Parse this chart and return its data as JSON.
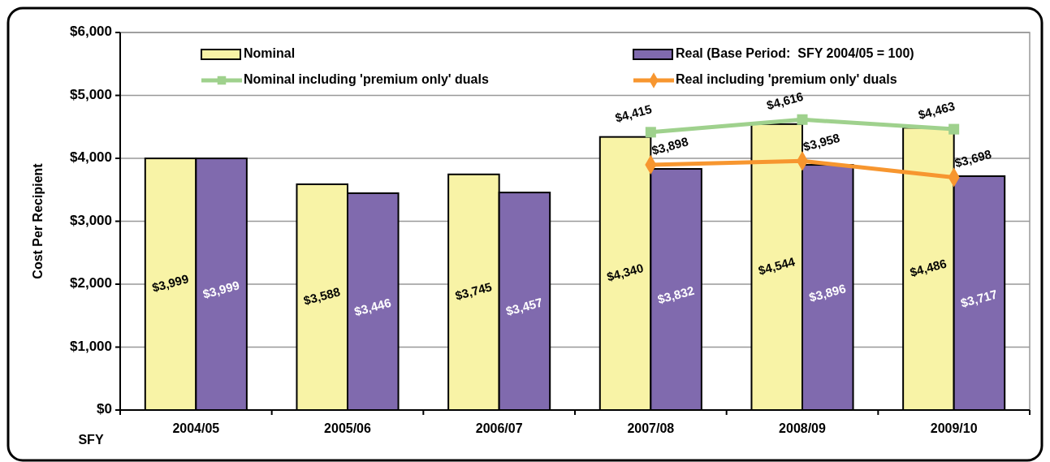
{
  "chart_data": {
    "type": "bar",
    "xlabel": "SFY",
    "ylabel": "Cost Per Recipient",
    "categories": [
      "2004/05",
      "2005/06",
      "2006/07",
      "2007/08",
      "2008/09",
      "2009/10"
    ],
    "ylim": [
      0,
      6000
    ],
    "yticks": [
      {
        "value": 0,
        "label": "$0"
      },
      {
        "value": 1000,
        "label": "$1,000"
      },
      {
        "value": 2000,
        "label": "$2,000"
      },
      {
        "value": 3000,
        "label": "$3,000"
      },
      {
        "value": 4000,
        "label": "$4,000"
      },
      {
        "value": 5000,
        "label": "$5,000"
      },
      {
        "value": 6000,
        "label": "$6,000"
      }
    ],
    "grid": "y",
    "legend": "top",
    "series": [
      {
        "name": "Nominal",
        "color": "#f8f3a6",
        "values": [
          3999,
          3588,
          3745,
          4340,
          4544,
          4486
        ],
        "value_labels": [
          "$3,999",
          "$3,588",
          "$3,745",
          "$4,340",
          "$4,544",
          "$4,486"
        ]
      },
      {
        "name": "Real (Base Period:  SFY 2004/05 = 100)",
        "color": "#806aae",
        "values": [
          3999,
          3446,
          3457,
          3832,
          3896,
          3717
        ],
        "value_labels": [
          "$3,999",
          "$3,446",
          "$3,457",
          "$3,832",
          "$3,896",
          "$3,717"
        ]
      },
      {
        "name": "Nominal including 'premium only' duals",
        "type": "line",
        "color": "#9fd18d",
        "marker": "square",
        "values": [
          null,
          null,
          null,
          4415,
          4616,
          4463
        ],
        "value_labels": [
          null,
          null,
          null,
          "$4,415",
          "$4,616",
          "$4,463"
        ]
      },
      {
        "name": "Real including 'premium only' duals",
        "type": "line",
        "color": "#f7962f",
        "marker": "diamond",
        "values": [
          null,
          null,
          null,
          3898,
          3958,
          3698
        ],
        "value_labels": [
          null,
          null,
          null,
          "$3,898",
          "$3,958",
          "$3,698"
        ]
      }
    ]
  }
}
